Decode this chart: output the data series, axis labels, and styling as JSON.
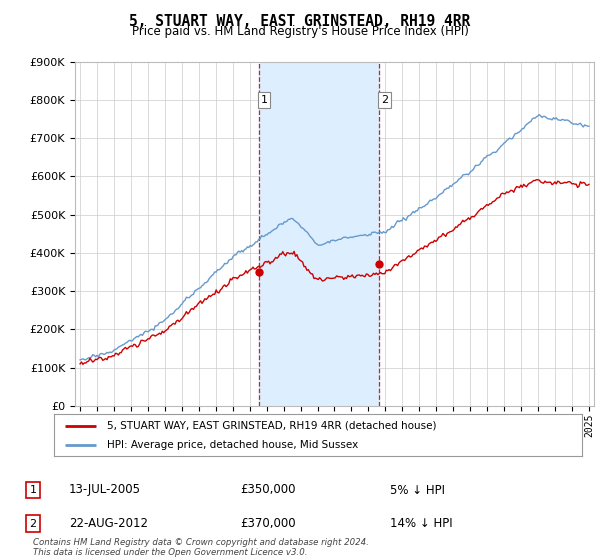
{
  "title": "5, STUART WAY, EAST GRINSTEAD, RH19 4RR",
  "subtitle": "Price paid vs. HM Land Registry's House Price Index (HPI)",
  "legend_line1": "5, STUART WAY, EAST GRINSTEAD, RH19 4RR (detached house)",
  "legend_line2": "HPI: Average price, detached house, Mid Sussex",
  "annotation1_date": "13-JUL-2005",
  "annotation1_price": "£350,000",
  "annotation1_hpi": "5% ↓ HPI",
  "annotation1_year": 2005.54,
  "annotation1_value": 350000,
  "annotation2_date": "22-AUG-2012",
  "annotation2_price": "£370,000",
  "annotation2_hpi": "14% ↓ HPI",
  "annotation2_year": 2012.64,
  "annotation2_value": 370000,
  "footer": "Contains HM Land Registry data © Crown copyright and database right 2024.\nThis data is licensed under the Open Government Licence v3.0.",
  "hpi_color": "#6699cc",
  "price_color": "#cc0000",
  "marker_color": "#cc0000",
  "background_color": "#ffffff",
  "grid_color": "#cccccc",
  "shaded_color": "#ddeeff",
  "ylim": [
    0,
    900000
  ],
  "yticks": [
    0,
    100000,
    200000,
    300000,
    400000,
    500000,
    600000,
    700000,
    800000,
    900000
  ],
  "xlim_start": 1994.7,
  "xlim_end": 2025.3
}
